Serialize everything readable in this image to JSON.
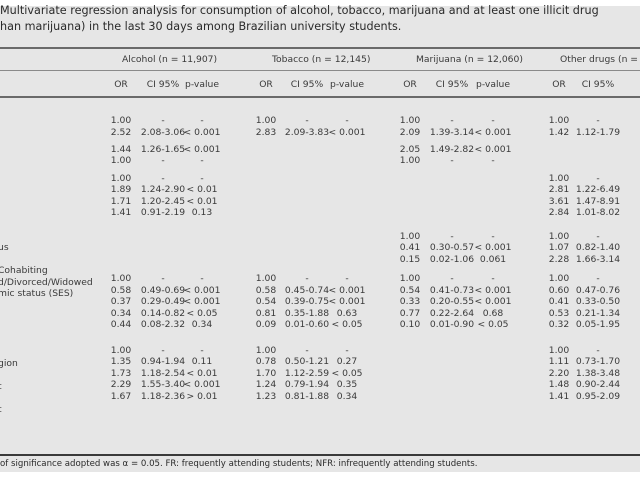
{
  "caption": {
    "line1": "Multivariate regression analysis for consumption of alcohol, tobacco, marijuana and at least one illicit drug",
    "line2": "han marijuana) in the last 30 days among Brazilian university students."
  },
  "groups": [
    {
      "label": "Alcohol (n = 11,907)"
    },
    {
      "label": "Tobacco (n = 12,145)"
    },
    {
      "label": "Marijuana (n = 12,060)"
    },
    {
      "label": "Other drugs (n ="
    }
  ],
  "columns": [
    "OR",
    "CI 95%",
    "p-value",
    "OR",
    "CI 95%",
    "p-value",
    "OR",
    "CI 95%",
    "p-value",
    "OR",
    "CI 95%"
  ],
  "row_labels": [
    {
      "row": 11,
      "text": "us"
    },
    {
      "row": 13,
      "text": "Cohabiting"
    },
    {
      "row": 14,
      "text": "d/Divorced/Widowed"
    },
    {
      "row": 15,
      "text": "mic status (SES)"
    },
    {
      "row": 21,
      "text": "gion"
    },
    {
      "row": 23,
      "text": "t"
    },
    {
      "row": 25,
      "text": "t"
    }
  ],
  "rows": [
    {
      "row": 0,
      "cells": [
        "1.00",
        "-",
        "-",
        "1.00",
        "-",
        "-",
        "1.00",
        "-",
        "-",
        "1.00",
        "-"
      ]
    },
    {
      "row": 1,
      "cells": [
        "2.52",
        "2.08-3.06",
        "< 0.001",
        "2.83",
        "2.09-3.83",
        "< 0.001",
        "2.09",
        "1.39-3.14",
        "< 0.001",
        "1.42",
        "1.12-1.79"
      ]
    },
    {
      "row": 2.5,
      "cells": [
        "1.44",
        "1.26-1.65",
        "< 0.001",
        "",
        "",
        "",
        "2.05",
        "1.49-2.82",
        "< 0.001",
        "",
        ""
      ]
    },
    {
      "row": 3.5,
      "cells": [
        "1.00",
        "-",
        "-",
        "",
        "",
        "",
        "1.00",
        "-",
        "-",
        "",
        ""
      ]
    },
    {
      "row": 5,
      "cells": [
        "1.00",
        "-",
        "-",
        "",
        "",
        "",
        "",
        "",
        "",
        "1.00",
        "-"
      ]
    },
    {
      "row": 6,
      "cells": [
        "1.89",
        "1.24-2.90",
        "< 0.01",
        "",
        "",
        "",
        "",
        "",
        "",
        "2.81",
        "1.22-6.49"
      ]
    },
    {
      "row": 7,
      "cells": [
        "1.71",
        "1.20-2.45",
        "< 0.01",
        "",
        "",
        "",
        "",
        "",
        "",
        "3.61",
        "1.47-8.91"
      ]
    },
    {
      "row": 8,
      "cells": [
        "1.41",
        "0.91-2.19",
        "0.13",
        "",
        "",
        "",
        "",
        "",
        "",
        "2.84",
        "1.01-8.02"
      ]
    },
    {
      "row": 10,
      "cells": [
        "",
        "",
        "",
        "",
        "",
        "",
        "1.00",
        "-",
        "-",
        "1.00",
        "-"
      ]
    },
    {
      "row": 11,
      "cells": [
        "",
        "",
        "",
        "",
        "",
        "",
        "0.41",
        "0.30-0.57",
        "< 0.001",
        "1.07",
        "0.82-1.40"
      ]
    },
    {
      "row": 12,
      "cells": [
        "",
        "",
        "",
        "",
        "",
        "",
        "0.15",
        "0.02-1.06",
        "0.061",
        "2.28",
        "1.66-3.14"
      ]
    },
    {
      "row": 13.7,
      "cells": [
        "1.00",
        "-",
        "-",
        "1.00",
        "-",
        "-",
        "1.00",
        "-",
        "-",
        "1.00",
        "-"
      ]
    },
    {
      "row": 14.7,
      "cells": [
        "0.58",
        "0.49-0.69",
        "< 0.001",
        "0.58",
        "0.45-0.74",
        "< 0.001",
        "0.54",
        "0.41-0.73",
        "< 0.001",
        "0.60",
        "0.47-0.76"
      ]
    },
    {
      "row": 15.7,
      "cells": [
        "0.37",
        "0.29-0.49",
        "< 0.001",
        "0.54",
        "0.39-0.75",
        "< 0.001",
        "0.33",
        "0.20-0.55",
        "< 0.001",
        "0.41",
        "0.33-0.50"
      ]
    },
    {
      "row": 16.7,
      "cells": [
        "0.34",
        "0.14-0.82",
        "< 0.05",
        "0.81",
        "0.35-1.88",
        "0.63",
        "0.77",
        "0.22-2.64",
        "0.68",
        "0.53",
        "0.21-1.34"
      ]
    },
    {
      "row": 17.7,
      "cells": [
        "0.44",
        "0.08-2.32",
        "0.34",
        "0.09",
        "0.01-0.60",
        "< 0.05",
        "0.10",
        "0.01-0.90",
        "< 0.05",
        "0.32",
        "0.05-1.95"
      ]
    },
    {
      "row": 19.9,
      "cells": [
        "1.00",
        "-",
        "-",
        "1.00",
        "-",
        "-",
        "",
        "",
        "",
        "1.00",
        "-"
      ]
    },
    {
      "row": 20.9,
      "cells": [
        "1.35",
        "0.94-1.94",
        "0.11",
        "0.78",
        "0.50-1.21",
        "0.27",
        "",
        "",
        "",
        "1.11",
        "0.73-1.70"
      ]
    },
    {
      "row": 21.9,
      "cells": [
        "1.73",
        "1.18-2.54",
        "< 0.01",
        "1.70",
        "1.12-2.59",
        "< 0.05",
        "",
        "",
        "",
        "2.20",
        "1.38-3.48"
      ]
    },
    {
      "row": 22.9,
      "cells": [
        "2.29",
        "1.55-3.40",
        "< 0.001",
        "1.24",
        "0.79-1.94",
        "0.35",
        "",
        "",
        "",
        "1.48",
        "0.90-2.44"
      ]
    },
    {
      "row": 23.9,
      "cells": [
        "1.67",
        "1.18-2.36",
        "> 0.01",
        "1.23",
        "0.81-1.88",
        "0.34",
        "",
        "",
        "",
        "1.41",
        "0.95-2.09"
      ]
    }
  ],
  "footnote": "of significance adopted was α = 0.05. FR: frequently attending students; NFR: infrequently attending students."
}
